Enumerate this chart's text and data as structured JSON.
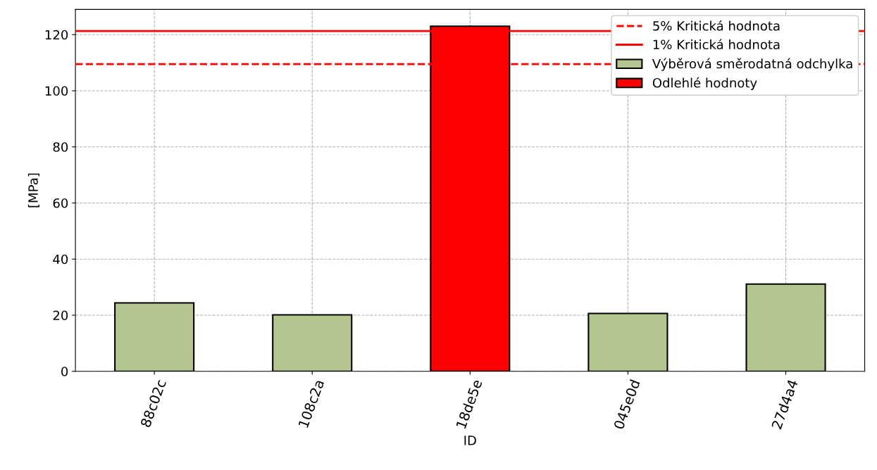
{
  "chart_data": {
    "type": "bar",
    "xlabel": "ID",
    "ylabel": "[MPa]",
    "categories": [
      "88c02c",
      "108c2a",
      "18de5e",
      "045e0d",
      "27d4a4"
    ],
    "series": [
      {
        "name": "Výběrová směrodatná odchylka",
        "color": "#b3c68f",
        "values": [
          24.4,
          20.1,
          null,
          20.6,
          31.1
        ]
      },
      {
        "name": "Odlehlé hodnoty",
        "color": "#ff0000",
        "values": [
          null,
          null,
          123.0,
          null,
          null
        ]
      }
    ],
    "ref_lines": [
      {
        "axis": "y",
        "value": 109.5,
        "label": "5% Kritická hodnota",
        "color": "#ff0000",
        "line_style": "dashed"
      },
      {
        "axis": "y",
        "value": 121.3,
        "label": "1% Kritická hodnota",
        "color": "#ff0000",
        "line_style": "solid"
      }
    ],
    "ylim": [
      0,
      129
    ],
    "yticks": [
      0,
      20,
      40,
      60,
      80,
      100,
      120
    ],
    "grid": true,
    "legend": "top right"
  }
}
